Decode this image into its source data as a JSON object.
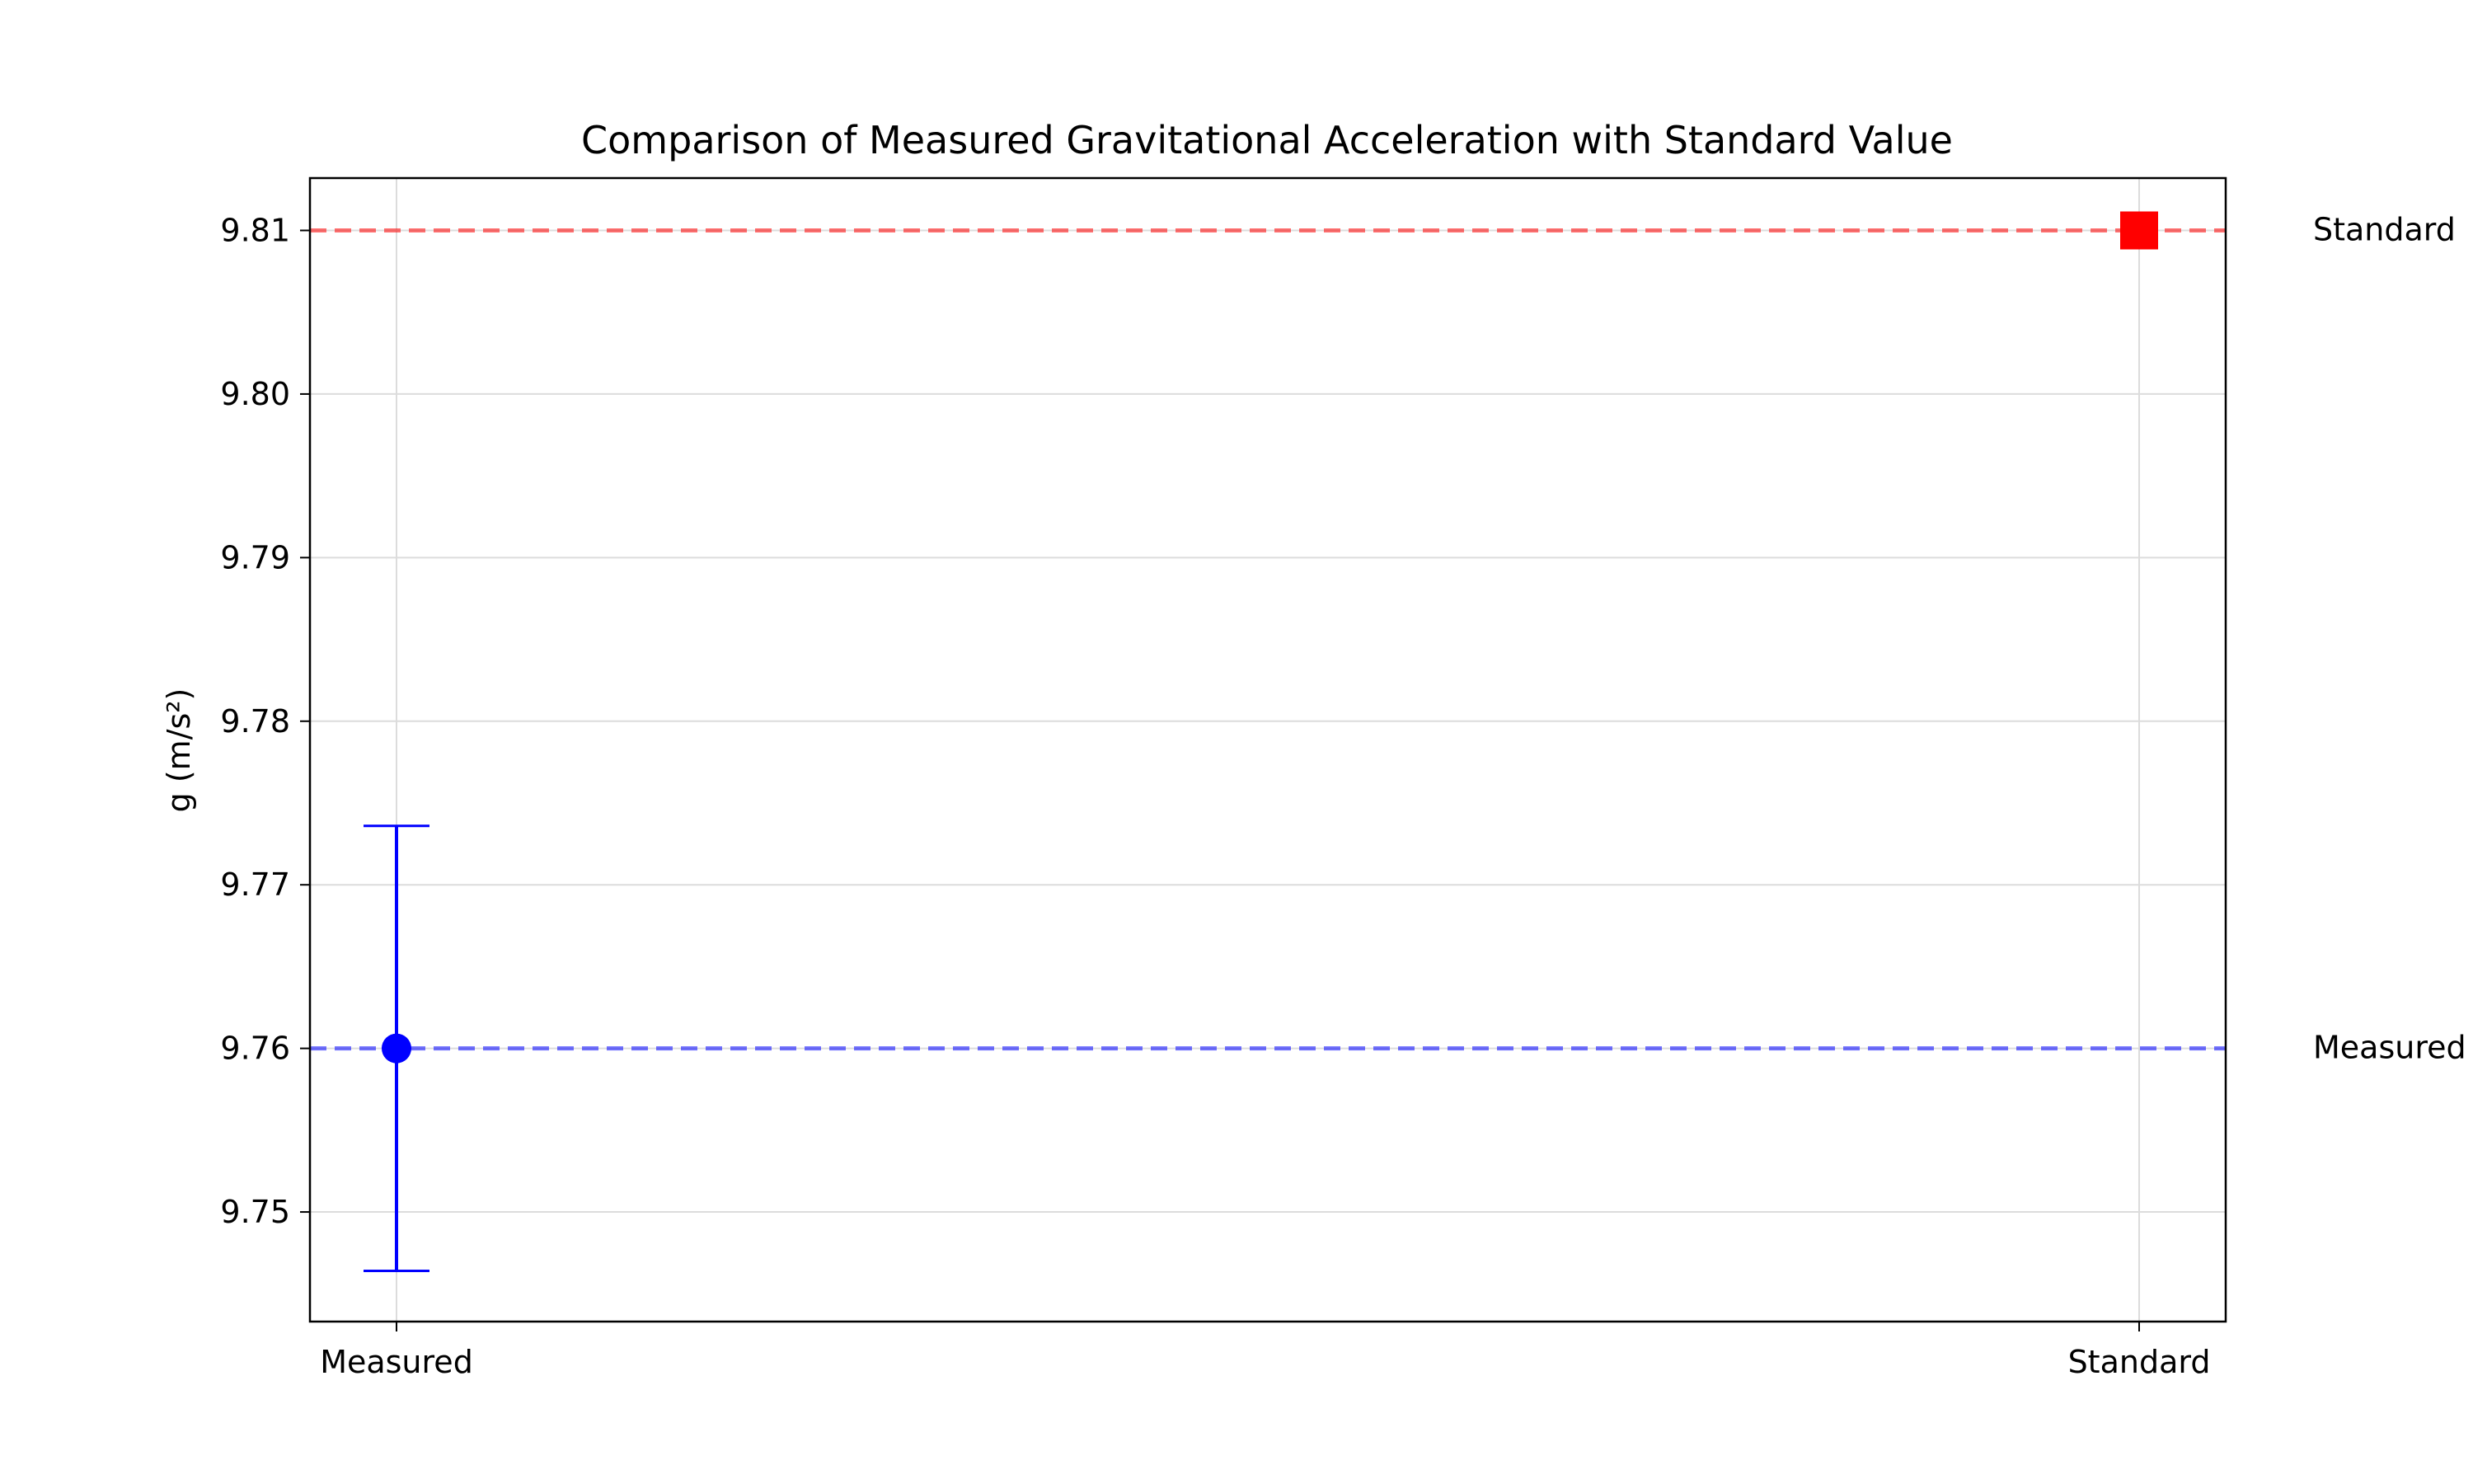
{
  "chart_data": {
    "type": "scatter",
    "title": "Comparison of Measured Gravitational Acceleration with Standard Value",
    "xlabel": "",
    "ylabel": "g (m/s²)",
    "categories": [
      "Measured",
      "Standard"
    ],
    "points": [
      {
        "category": "Measured",
        "value": 9.76,
        "error": 0.0136,
        "marker": "circle",
        "color": "#0000ff"
      },
      {
        "category": "Standard",
        "value": 9.81,
        "marker": "square",
        "color": "#ff0000"
      }
    ],
    "reference_lines": [
      {
        "value": 9.81,
        "label": "Standard",
        "color": "#ff0000",
        "style": "dashed"
      },
      {
        "value": 9.76,
        "label": "Measured",
        "color": "#0000ff",
        "style": "dashed"
      }
    ],
    "ylim": [
      9.7433,
      9.8132
    ],
    "yticks": [
      9.75,
      9.76,
      9.77,
      9.78,
      9.79,
      9.8,
      9.81
    ],
    "ytick_labels": [
      "9.75",
      "9.76",
      "9.77",
      "9.78",
      "9.79",
      "9.80",
      "9.81"
    ],
    "grid": true,
    "legend": "none"
  }
}
